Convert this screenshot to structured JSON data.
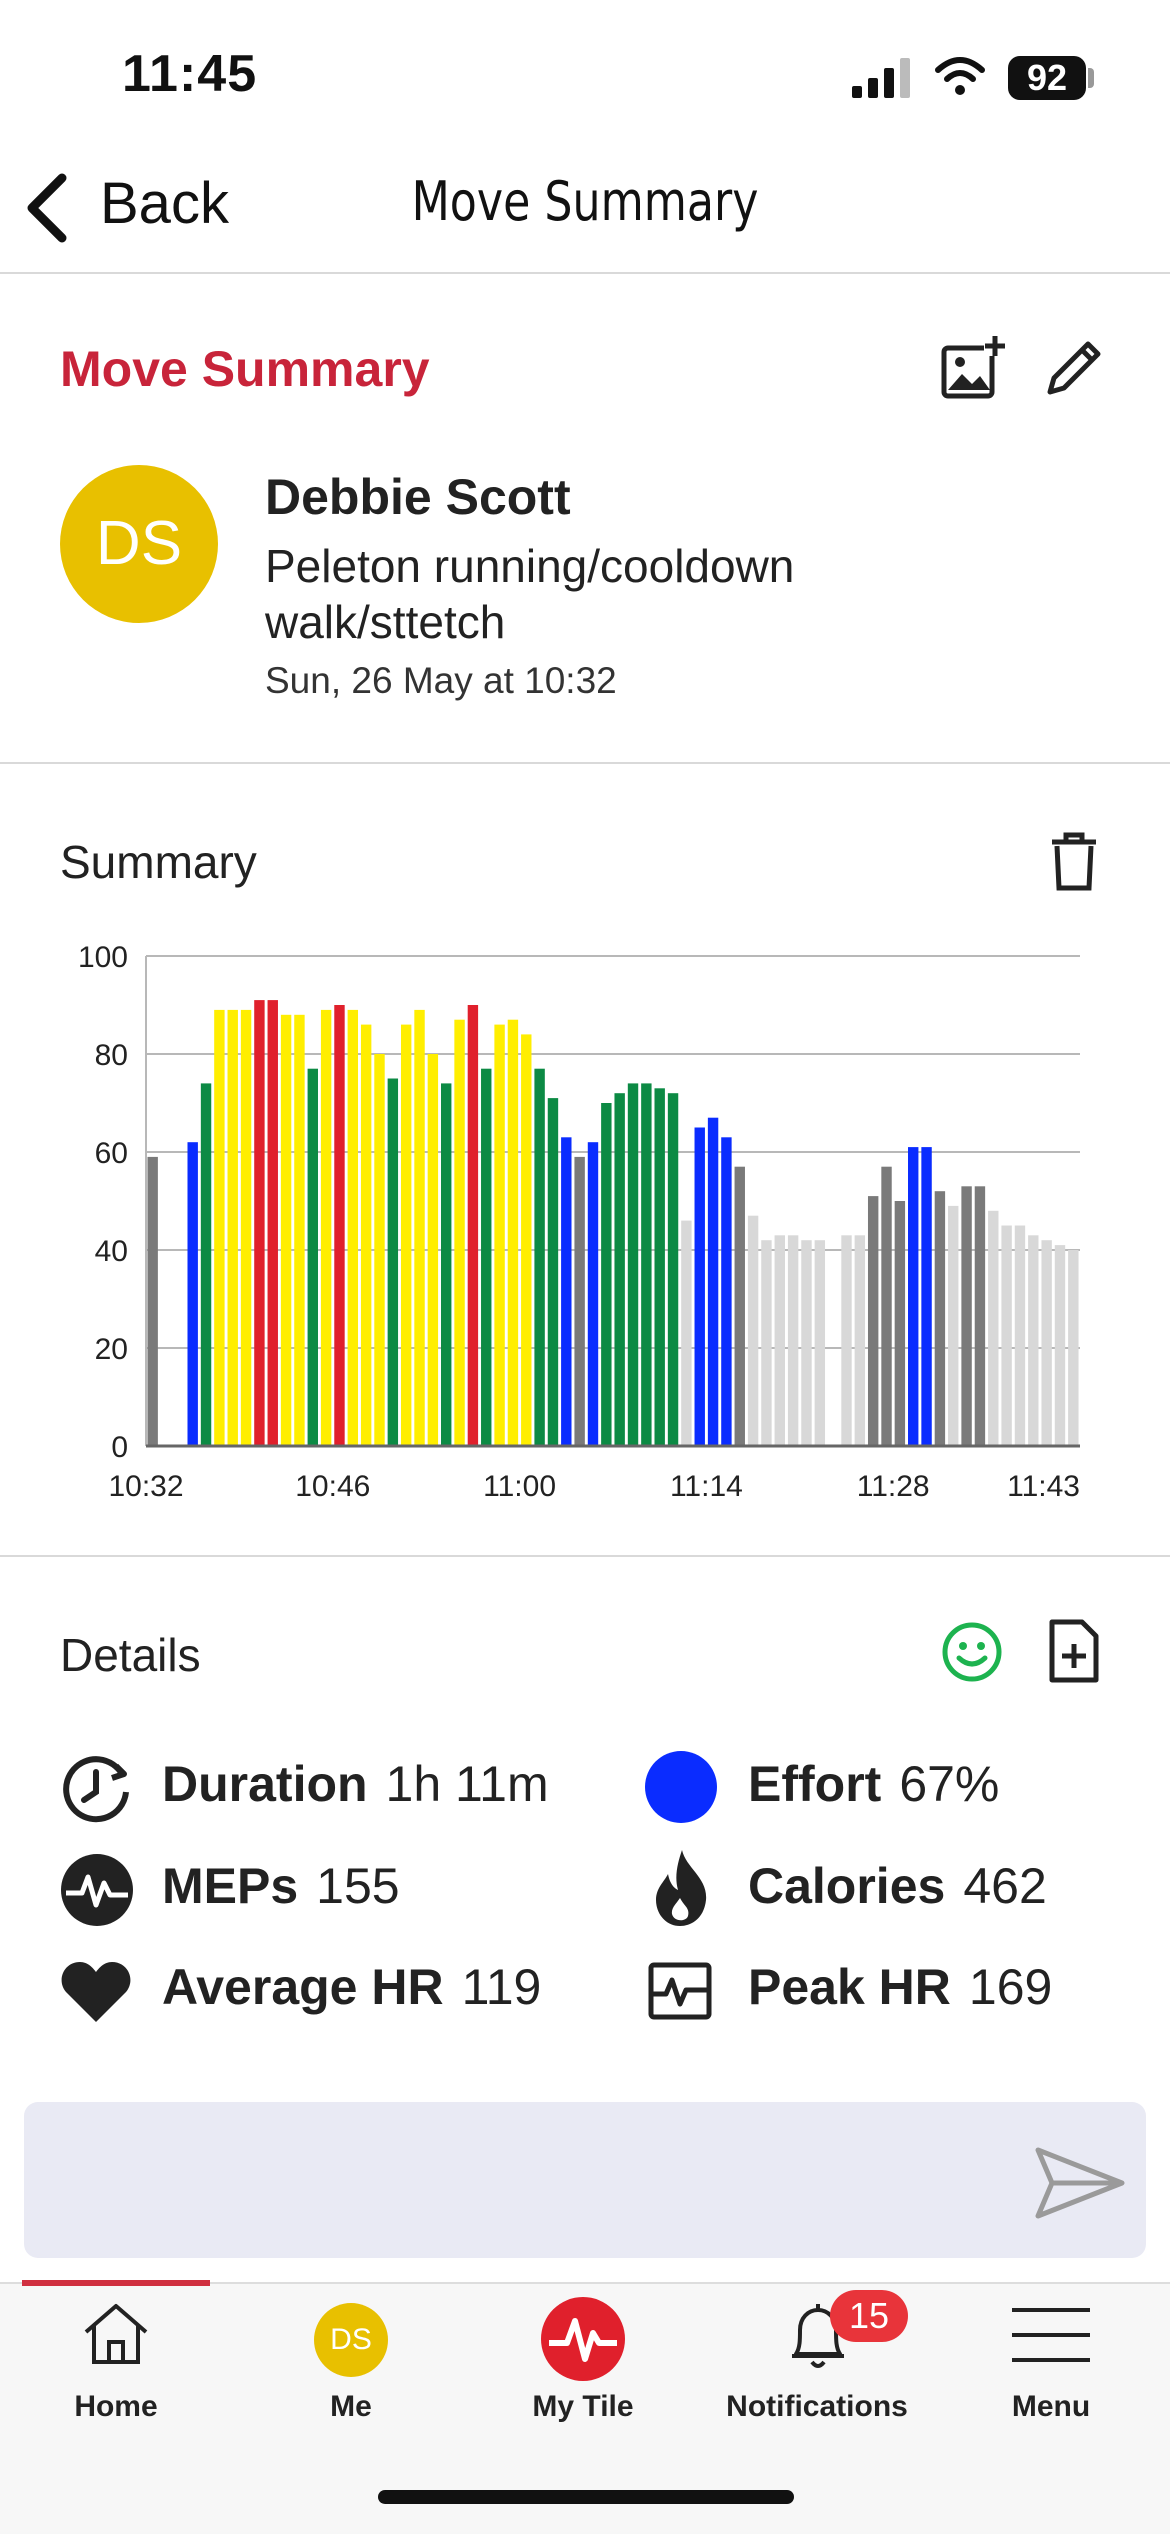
{
  "status_bar": {
    "time": "11:45",
    "battery": "92"
  },
  "nav": {
    "back_label": "Back",
    "title": "Move Summary"
  },
  "move_summary": {
    "heading": "Move Summary",
    "avatar_initials": "DS",
    "user_name": "Debbie Scott",
    "activity": "Peleton running/cooldown walk/sttetch",
    "date": "Sun, 26 May at 10:32"
  },
  "summary": {
    "label": "Summary",
    "chart_data": {
      "type": "bar",
      "ylim": [
        0,
        100
      ],
      "y_ticks": [
        "0",
        "20",
        "40",
        "60",
        "80",
        "100"
      ],
      "x_ticks": [
        "10:32",
        "10:46",
        "11:00",
        "11:14",
        "11:28",
        "11:43"
      ],
      "grid": true,
      "zone_colors": {
        "gray": "#7a7a7a",
        "blue": "#0a2cff",
        "green": "#0c8a44",
        "yellow": "#ffee00",
        "red": "#e0202c",
        "light": "#d8d8d8"
      },
      "values": [
        59,
        0,
        0,
        62,
        74,
        89,
        89,
        89,
        91,
        91,
        88,
        88,
        77,
        89,
        90,
        89,
        86,
        80,
        75,
        86,
        89,
        80,
        74,
        87,
        90,
        77,
        86,
        87,
        84,
        77,
        71,
        63,
        59,
        62,
        70,
        72,
        74,
        74,
        73,
        72,
        46,
        65,
        67,
        63,
        57,
        47,
        42,
        43,
        43,
        42,
        42,
        0,
        43,
        43,
        51,
        57,
        50,
        61,
        61,
        52,
        49,
        53,
        53,
        48,
        45,
        45,
        43,
        42,
        41,
        40
      ],
      "zones": [
        "gray",
        "gray",
        "gray",
        "blue",
        "green",
        "yellow",
        "yellow",
        "yellow",
        "red",
        "red",
        "yellow",
        "yellow",
        "green",
        "yellow",
        "red",
        "yellow",
        "yellow",
        "yellow",
        "green",
        "yellow",
        "yellow",
        "yellow",
        "green",
        "yellow",
        "red",
        "green",
        "yellow",
        "yellow",
        "yellow",
        "green",
        "green",
        "blue",
        "gray",
        "blue",
        "green",
        "green",
        "green",
        "green",
        "green",
        "green",
        "light",
        "blue",
        "blue",
        "blue",
        "gray",
        "light",
        "light",
        "light",
        "light",
        "light",
        "light",
        "light",
        "light",
        "light",
        "gray",
        "gray",
        "gray",
        "blue",
        "blue",
        "gray",
        "light",
        "gray",
        "gray",
        "light",
        "light",
        "light",
        "light",
        "light",
        "light",
        "light"
      ]
    }
  },
  "details": {
    "label": "Details",
    "metrics": {
      "duration": {
        "label": "Duration",
        "value": "1h 11m"
      },
      "effort": {
        "label": "Effort",
        "value": "67%"
      },
      "meps": {
        "label": "MEPs",
        "value": "155"
      },
      "calories": {
        "label": "Calories",
        "value": "462"
      },
      "avg_hr": {
        "label": "Average HR",
        "value": "119"
      },
      "peak_hr": {
        "label": "Peak HR",
        "value": "169"
      }
    },
    "effort_color": "#0a2cff"
  },
  "tabs": {
    "home": "Home",
    "me": "Me",
    "me_initials": "DS",
    "mytile": "My Tile",
    "notifications": "Notifications",
    "notifications_badge": "15",
    "menu": "Menu"
  }
}
